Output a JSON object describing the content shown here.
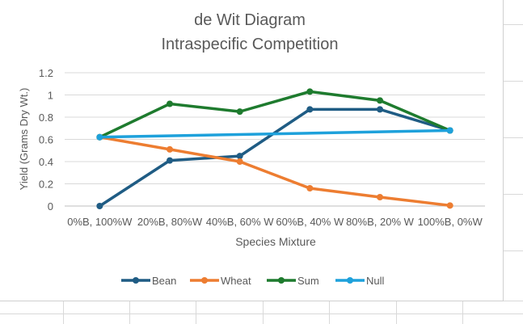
{
  "chart_data": {
    "type": "line",
    "title": [
      "de Wit Diagram",
      "Intraspecific Competition"
    ],
    "xlabel": "Species Mixture",
    "ylabel": "Yield (Grams Dry Wt.)",
    "ylim": [
      0,
      1.2
    ],
    "yticks": [
      "0",
      "0.2",
      "0.4",
      "0.6",
      "0.8",
      "1",
      "1.2"
    ],
    "categories": [
      "0%B, 100%W",
      "20%B, 80%W",
      "40%B, 60% W",
      "60%B, 40% W",
      "80%B, 20% W",
      "100%B, 0%W"
    ],
    "grid": true,
    "legend_position": "bottom",
    "series": [
      {
        "name": "Bean",
        "color": "#1f5c84",
        "values": [
          0,
          0.41,
          0.45,
          0.87,
          0.87,
          0.68
        ]
      },
      {
        "name": "Wheat",
        "color": "#ed7d31",
        "values": [
          0.62,
          0.51,
          0.4,
          0.16,
          0.08,
          0.005
        ]
      },
      {
        "name": "Sum",
        "color": "#1e7b2e",
        "values": [
          0.62,
          0.92,
          0.85,
          1.03,
          0.95,
          0.68
        ]
      },
      {
        "name": "Null",
        "color": "#1ea1db",
        "values": [
          0.62,
          null,
          null,
          null,
          null,
          0.68
        ]
      }
    ]
  }
}
